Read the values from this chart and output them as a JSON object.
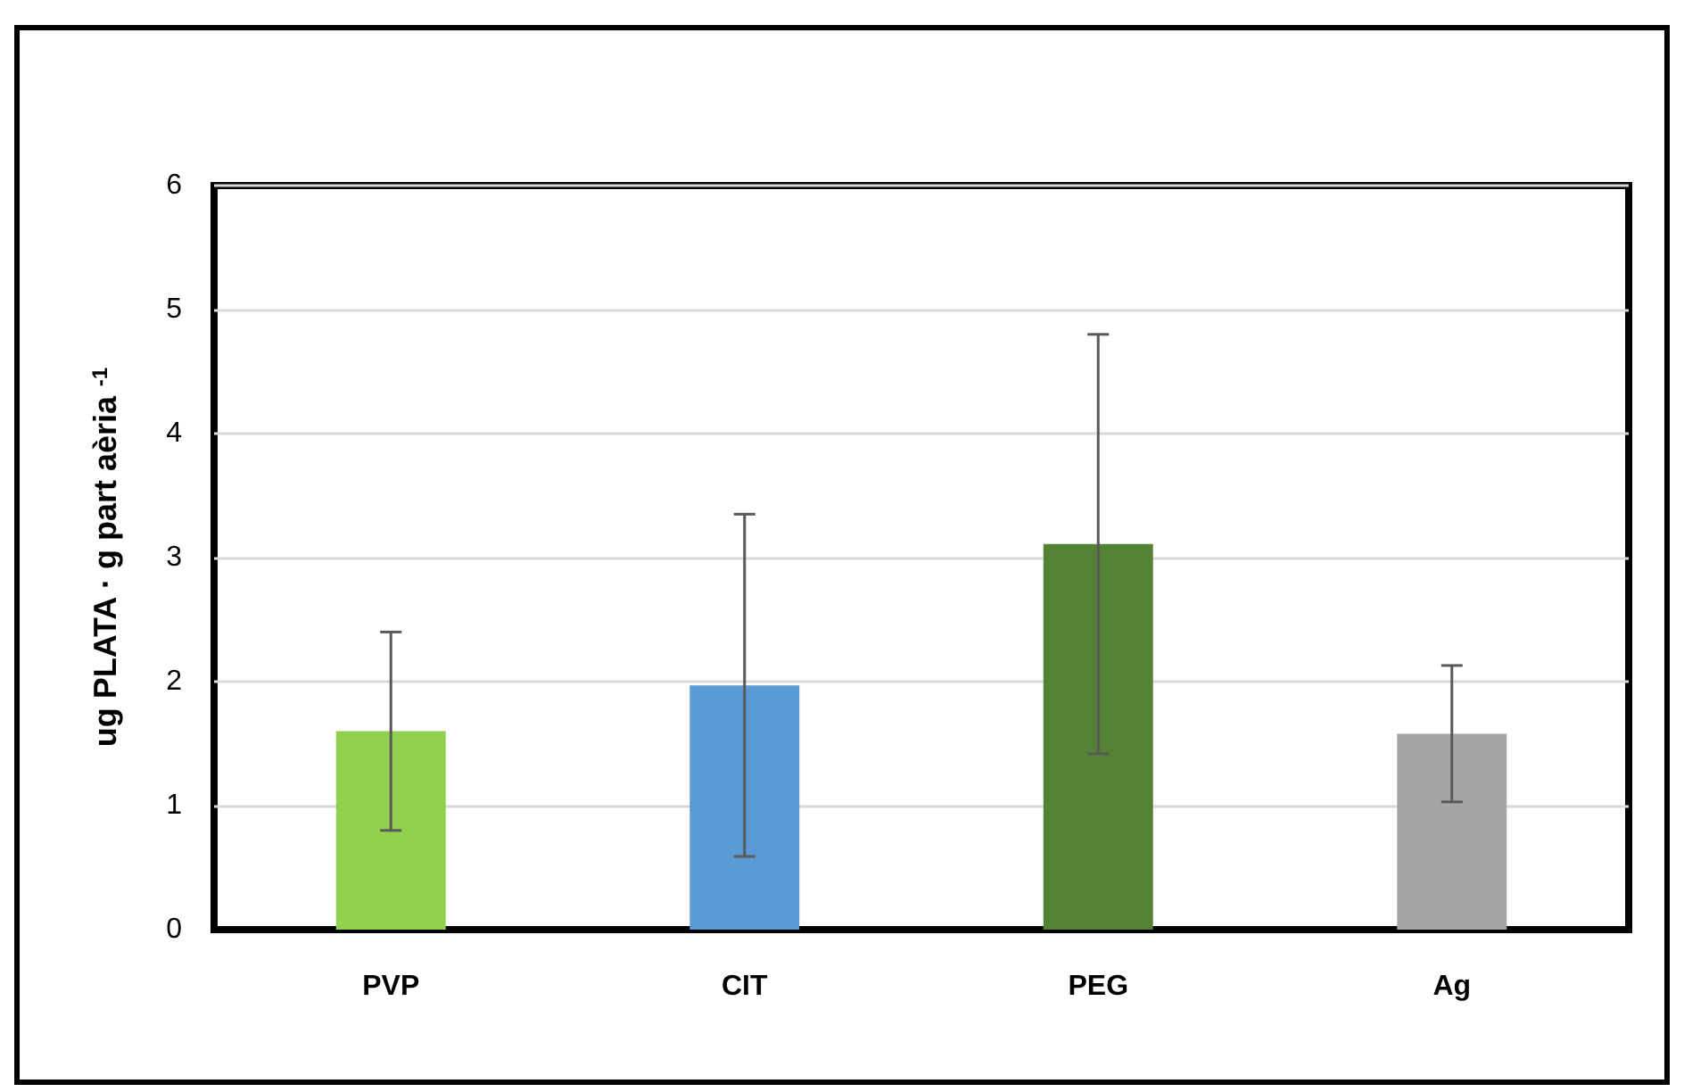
{
  "chart_data": {
    "type": "bar",
    "ylabel": "ug PLATA · g part aèria $^{-1}$",
    "categories": [
      "PVP",
      "CIT",
      "PEG",
      "Ag"
    ],
    "values": [
      1.6,
      1.97,
      3.11,
      1.58
    ],
    "colors": [
      "#92d050",
      "#5b9bd5",
      "#548235",
      "#a5a5a5"
    ],
    "errors": [
      0.8,
      1.38,
      1.69,
      0.55
    ],
    "ylim": [
      0,
      6
    ],
    "yticks": [
      0,
      1,
      2,
      3,
      4,
      5,
      6
    ],
    "grid": "y"
  }
}
